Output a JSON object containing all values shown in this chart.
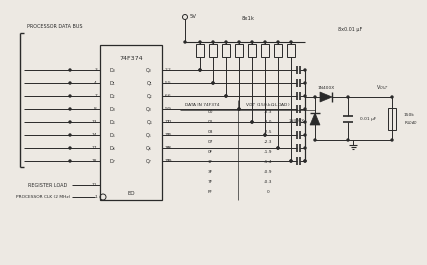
{
  "bg_color": "#ede9e3",
  "line_color": "#2a2a2a",
  "text_color": "#2a2a2a",
  "ic_label": "74F374",
  "data_bus_label": "PROCESSOR DATA BUS",
  "register_load_label": "REGISTER LOAD",
  "clk_label": "PROCESSOR CLK (2 MHz)",
  "eo_label": "EO",
  "vcc_label": "5V",
  "resistor_label": "8x1k",
  "cap_label": "8x0.01 μF",
  "d_pins": [
    "D₀",
    "D₁",
    "D₂",
    "D₃",
    "D₄",
    "D₅",
    "D₆",
    "D₇"
  ],
  "d_pin_nums": [
    "3",
    "4",
    "7",
    "8",
    "13",
    "14",
    "17",
    "18"
  ],
  "q_pins": [
    "Q₀",
    "Q₁",
    "Q₂",
    "Q₃",
    "Q₄",
    "Q₅",
    "Q₆",
    "Q₇"
  ],
  "q_pin_nums": [
    "2",
    "5",
    "6",
    "9",
    "12",
    "15",
    "16",
    "19"
  ],
  "register_load_pin": "11",
  "clk_pin": "1",
  "table_data": [
    [
      "00",
      "-3.3"
    ],
    [
      "01",
      "-3.0"
    ],
    [
      "03",
      "-2.5"
    ],
    [
      "07",
      "-2.3"
    ],
    [
      "0F",
      "-1.9"
    ],
    [
      "1F",
      "-1.4"
    ],
    [
      "3F",
      "-0.9"
    ],
    [
      "7F",
      "-0.3"
    ],
    [
      "FF",
      "0"
    ]
  ],
  "diode1_label": "1N400X",
  "diode2_label": "1N400X",
  "vout_label": "Vₒᵁᵀ",
  "cap2_label": "0.01 μF",
  "rload_top": "150k",
  "rload_bot": "Rₗₒₐₑ"
}
